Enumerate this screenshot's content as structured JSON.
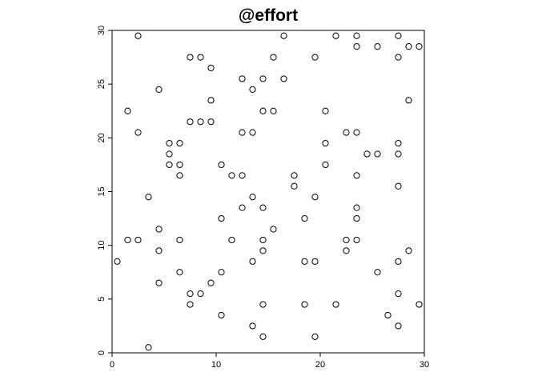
{
  "chart_data": {
    "type": "scatter",
    "title": "@effort",
    "xlabel": "",
    "ylabel": "",
    "xlim": [
      0,
      30
    ],
    "ylim": [
      0,
      30
    ],
    "xticks": [
      0,
      10,
      20,
      30
    ],
    "yticks": [
      0,
      5,
      10,
      15,
      20,
      25,
      30
    ],
    "grid": false,
    "marker": "open-circle",
    "points": [
      [
        0.5,
        8.5
      ],
      [
        1.5,
        22.5
      ],
      [
        1.5,
        10.5
      ],
      [
        2.5,
        29.5
      ],
      [
        2.5,
        20.5
      ],
      [
        2.5,
        10.5
      ],
      [
        3.5,
        14.5
      ],
      [
        3.5,
        0.5
      ],
      [
        4.5,
        24.5
      ],
      [
        4.5,
        11.5
      ],
      [
        4.5,
        9.5
      ],
      [
        4.5,
        6.5
      ],
      [
        5.5,
        19.5
      ],
      [
        5.5,
        18.5
      ],
      [
        5.5,
        17.5
      ],
      [
        6.5,
        19.5
      ],
      [
        6.5,
        17.5
      ],
      [
        6.5,
        16.5
      ],
      [
        6.5,
        10.5
      ],
      [
        6.5,
        7.5
      ],
      [
        7.5,
        27.5
      ],
      [
        7.5,
        21.5
      ],
      [
        7.5,
        5.5
      ],
      [
        7.5,
        4.5
      ],
      [
        8.5,
        27.5
      ],
      [
        8.5,
        21.5
      ],
      [
        8.5,
        5.5
      ],
      [
        9.5,
        26.5
      ],
      [
        9.5,
        23.5
      ],
      [
        9.5,
        21.5
      ],
      [
        9.5,
        6.5
      ],
      [
        10.5,
        17.5
      ],
      [
        10.5,
        12.5
      ],
      [
        10.5,
        7.5
      ],
      [
        10.5,
        3.5
      ],
      [
        11.5,
        16.5
      ],
      [
        11.5,
        10.5
      ],
      [
        12.5,
        25.5
      ],
      [
        12.5,
        20.5
      ],
      [
        12.5,
        16.5
      ],
      [
        12.5,
        13.5
      ],
      [
        13.5,
        24.5
      ],
      [
        13.5,
        20.5
      ],
      [
        13.5,
        14.5
      ],
      [
        13.5,
        8.5
      ],
      [
        13.5,
        2.5
      ],
      [
        14.5,
        25.5
      ],
      [
        14.5,
        22.5
      ],
      [
        14.5,
        13.5
      ],
      [
        14.5,
        10.5
      ],
      [
        14.5,
        9.5
      ],
      [
        14.5,
        4.5
      ],
      [
        14.5,
        1.5
      ],
      [
        15.5,
        27.5
      ],
      [
        15.5,
        22.5
      ],
      [
        15.5,
        11.5
      ],
      [
        16.5,
        29.5
      ],
      [
        16.5,
        25.5
      ],
      [
        17.5,
        16.5
      ],
      [
        17.5,
        15.5
      ],
      [
        18.5,
        12.5
      ],
      [
        18.5,
        8.5
      ],
      [
        18.5,
        4.5
      ],
      [
        19.5,
        27.5
      ],
      [
        19.5,
        14.5
      ],
      [
        19.5,
        8.5
      ],
      [
        19.5,
        1.5
      ],
      [
        20.5,
        22.5
      ],
      [
        20.5,
        19.5
      ],
      [
        20.5,
        17.5
      ],
      [
        21.5,
        29.5
      ],
      [
        21.5,
        4.5
      ],
      [
        22.5,
        20.5
      ],
      [
        22.5,
        10.5
      ],
      [
        22.5,
        9.5
      ],
      [
        23.5,
        29.5
      ],
      [
        23.5,
        28.5
      ],
      [
        23.5,
        20.5
      ],
      [
        23.5,
        16.5
      ],
      [
        23.5,
        13.5
      ],
      [
        23.5,
        12.5
      ],
      [
        23.5,
        10.5
      ],
      [
        24.5,
        18.5
      ],
      [
        25.5,
        28.5
      ],
      [
        25.5,
        18.5
      ],
      [
        25.5,
        7.5
      ],
      [
        26.5,
        3.5
      ],
      [
        27.5,
        29.5
      ],
      [
        27.5,
        27.5
      ],
      [
        27.5,
        19.5
      ],
      [
        27.5,
        18.5
      ],
      [
        27.5,
        15.5
      ],
      [
        27.5,
        8.5
      ],
      [
        27.5,
        5.5
      ],
      [
        27.5,
        2.5
      ],
      [
        28.5,
        28.5
      ],
      [
        28.5,
        23.5
      ],
      [
        28.5,
        9.5
      ],
      [
        29.5,
        28.5
      ],
      [
        29.5,
        4.5
      ]
    ]
  }
}
